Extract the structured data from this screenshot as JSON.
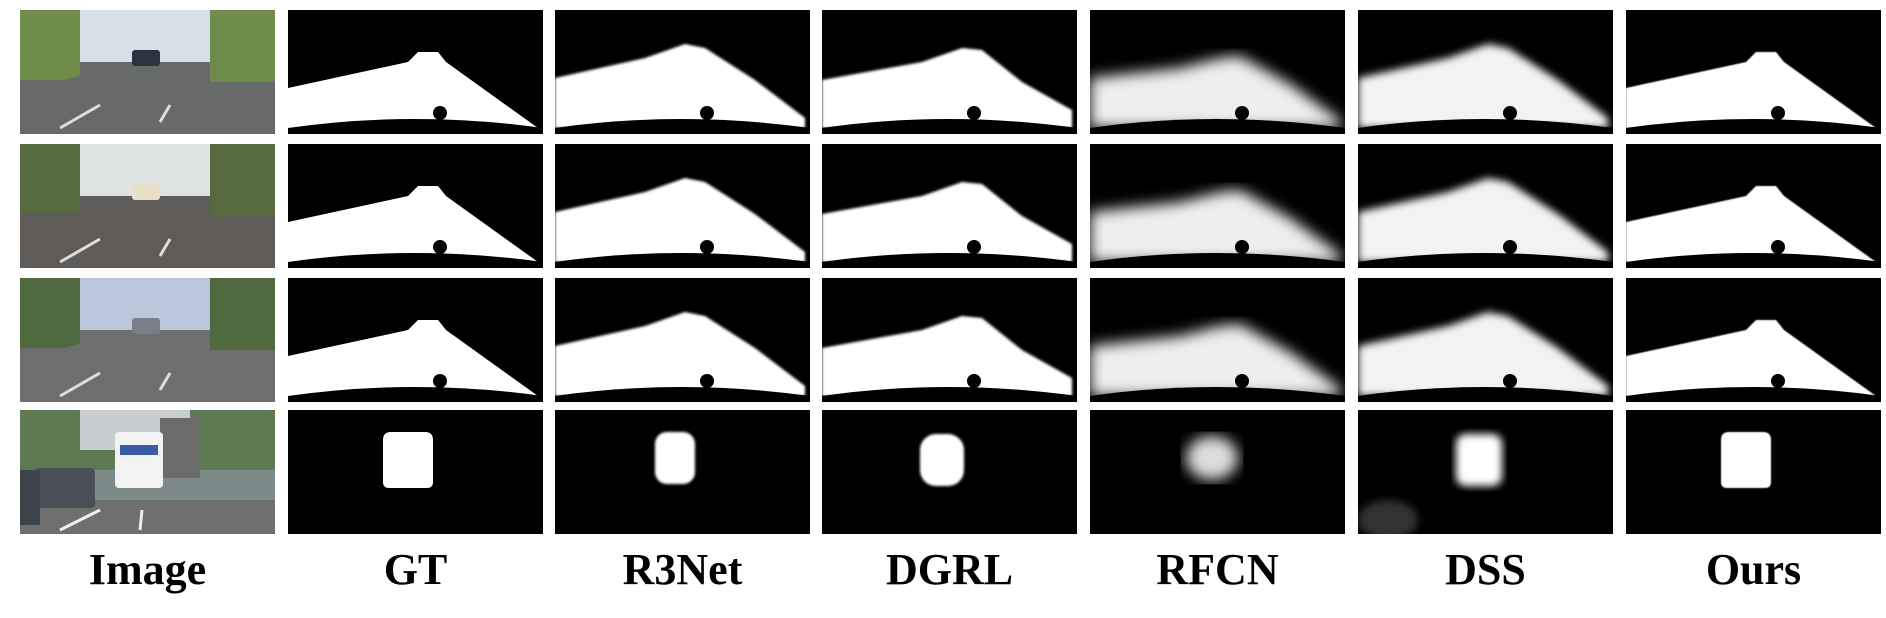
{
  "figure": {
    "columns": [
      {
        "key": "image",
        "label": "Image"
      },
      {
        "key": "gt",
        "label": "GT"
      },
      {
        "key": "r3net",
        "label": "R3Net"
      },
      {
        "key": "dgrl",
        "label": "DGRL"
      },
      {
        "key": "rfcn",
        "label": "RFCN"
      },
      {
        "key": "dss",
        "label": "DSS"
      },
      {
        "key": "ours",
        "label": "Ours"
      }
    ],
    "rows": [
      "row-1",
      "row-2",
      "row-3",
      "row-4"
    ]
  }
}
